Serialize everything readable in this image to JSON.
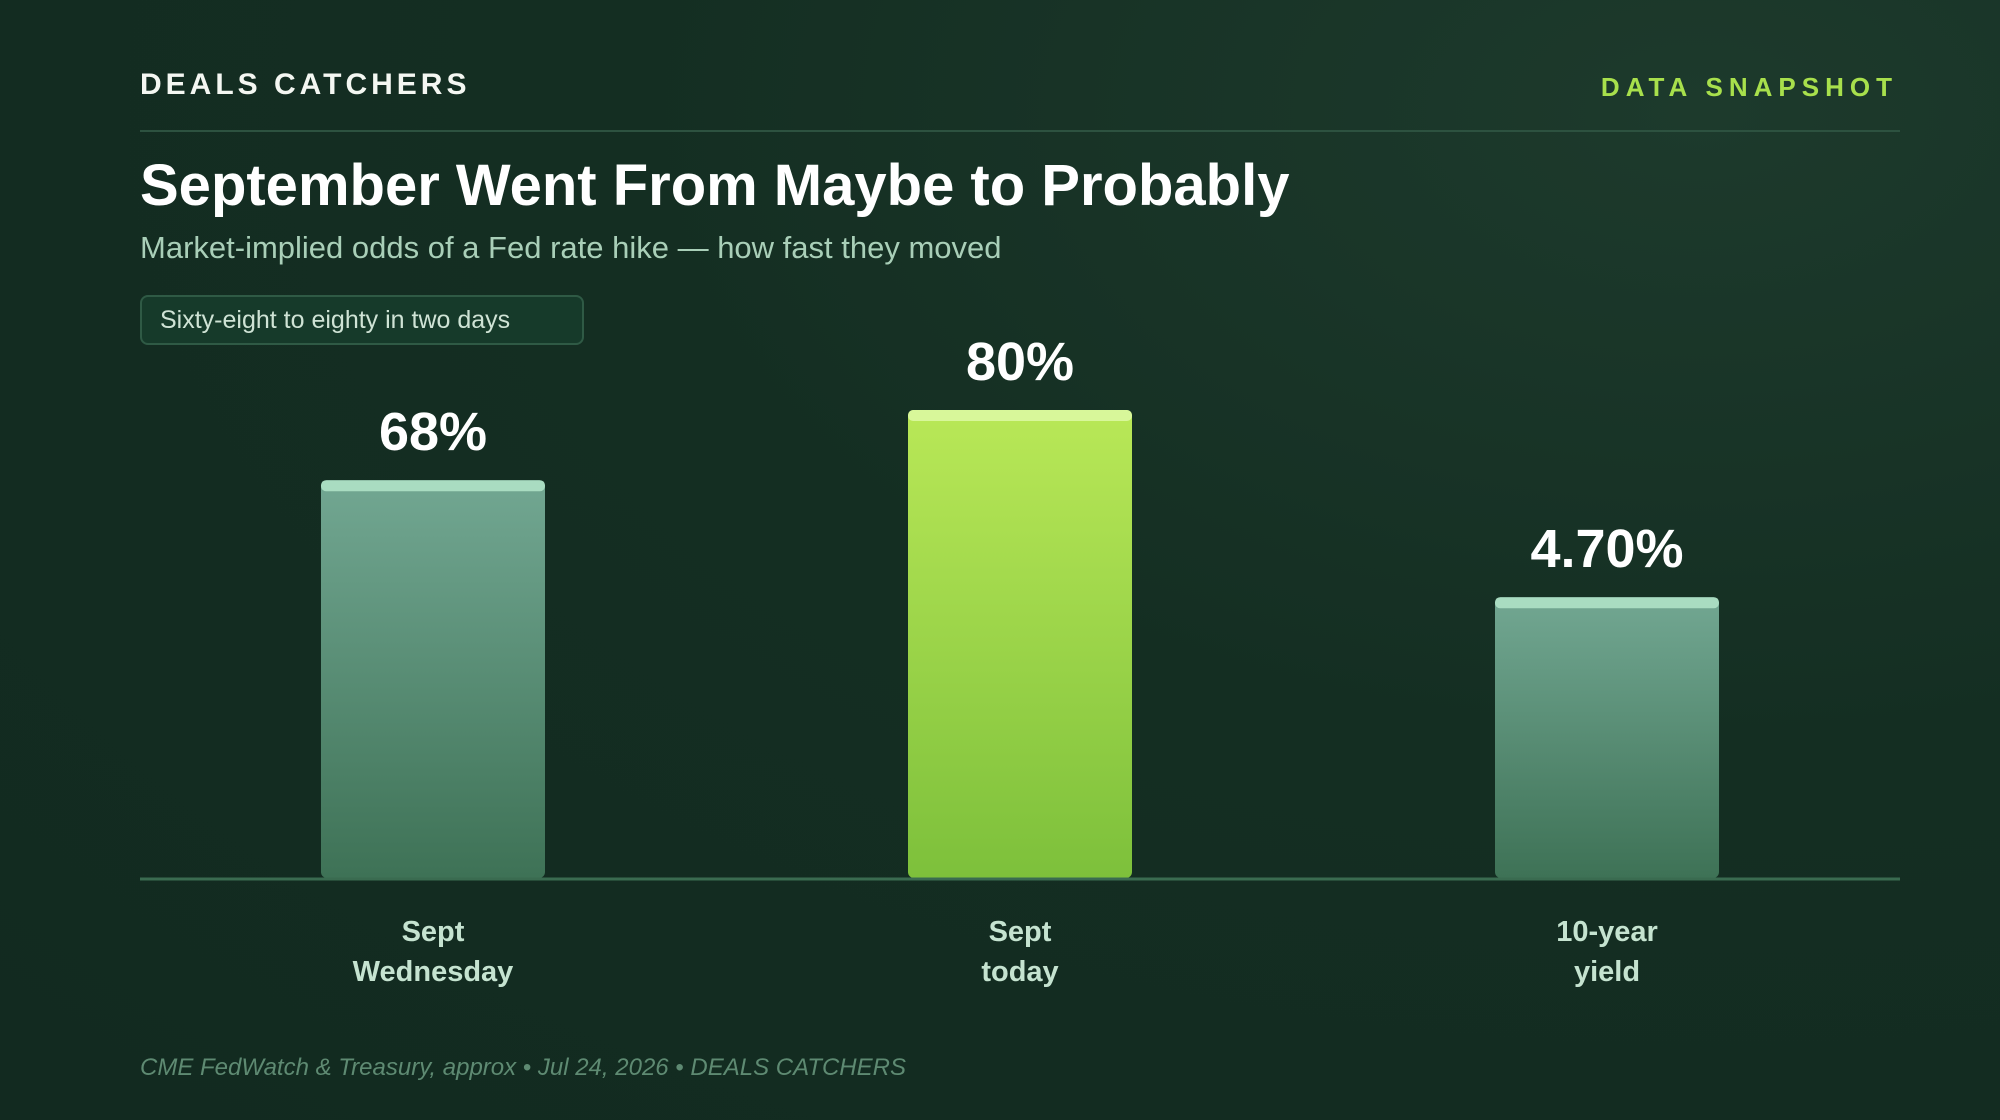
{
  "header": {
    "brand": "DEALS CATCHERS",
    "tag": "DATA SNAPSHOT"
  },
  "title": "September Went From Maybe to Probably",
  "subtitle": "Market-implied odds of a Fed rate hike — how fast they moved",
  "badge": "Sixty-eight to eighty in two days",
  "source": "CME FedWatch & Treasury, approx • Jul 24, 2026 • DEALS CATCHERS",
  "colors": {
    "accent": "#a8e04c",
    "highlight_bar_top": "#b9e857",
    "highlight_bar_bottom": "#7dc03b",
    "muted_bar_top": "#72a792",
    "muted_bar_bottom": "#3e7256",
    "background": "#132e22"
  },
  "chart_data": {
    "type": "bar",
    "categories": [
      [
        "Sept",
        "Wednesday"
      ],
      [
        "Sept",
        "today"
      ],
      [
        "10-year",
        "yield"
      ]
    ],
    "values": [
      68,
      80,
      4.7
    ],
    "value_labels": [
      "68%",
      "80%",
      "4.70%"
    ],
    "highlight_index": 1,
    "title": "September Went From Maybe to Probably",
    "xlabel": "",
    "ylabel": "",
    "grid": false,
    "legend": "none"
  }
}
